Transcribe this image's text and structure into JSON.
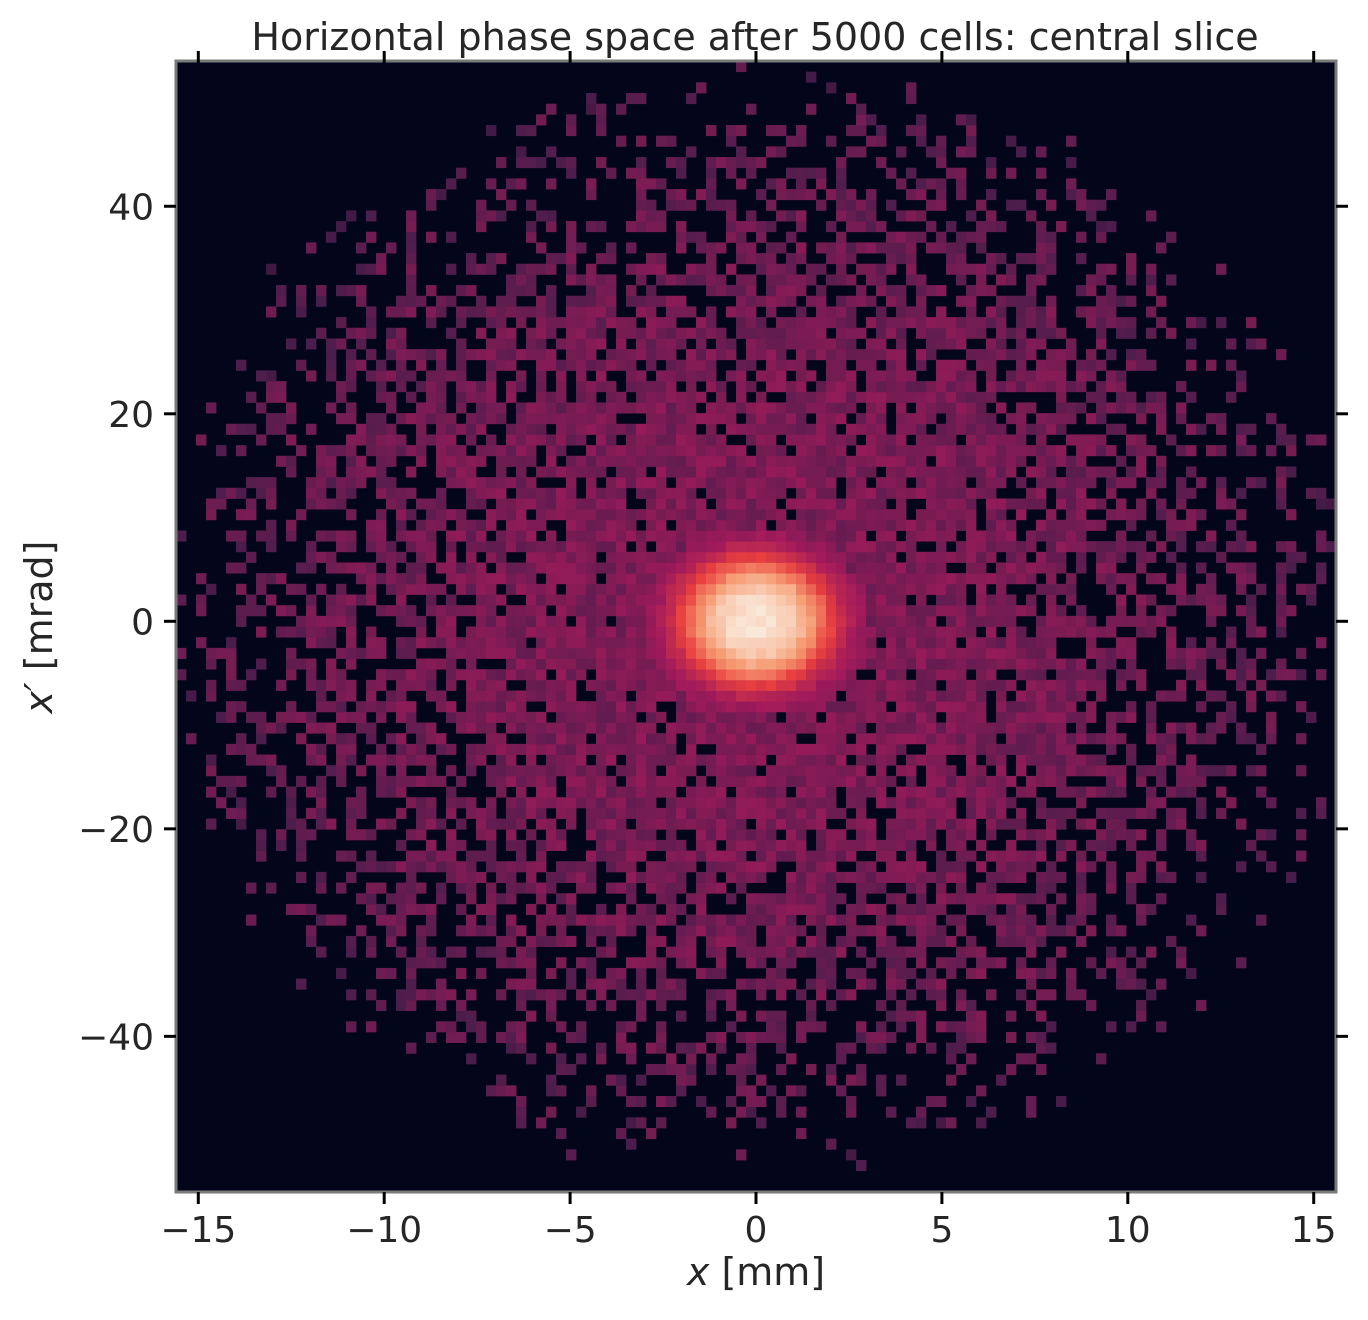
{
  "chart_data": {
    "type": "heatmap",
    "title": "Horizontal phase space after 5000 cells: central slice",
    "xlabel_var": "x",
    "xlabel_unit": "[mm]",
    "ylabel_var": "x′",
    "ylabel_unit": "[mrad]",
    "xlim": [
      -15.6,
      15.6
    ],
    "ylim": [
      -55,
      54
    ],
    "xticks": [
      -15,
      -10,
      -5,
      0,
      5,
      10,
      15
    ],
    "xtick_labels": [
      "−15",
      "−10",
      "−5",
      "0",
      "5",
      "10",
      "15"
    ],
    "yticks": [
      -40,
      -20,
      0,
      20,
      40
    ],
    "ytick_labels": [
      "−40",
      "−20",
      "0",
      "20",
      "40"
    ],
    "bins": {
      "x": 116,
      "y": 106
    },
    "core": {
      "center_x": 0,
      "center_y": 0,
      "sigma_x_mm": 1.6,
      "sigma_y_mrad": 4.8
    },
    "halo": {
      "center_x": 0,
      "center_y": 0,
      "radius_x_mm": 14.5,
      "radius_y_mrad": 47
    },
    "colormap": [
      "#03051a",
      "#4c1d4b",
      "#a11a5b",
      "#e83f3f",
      "#f69c73",
      "#faebdd"
    ],
    "background_color": "#03051a",
    "grid": false
  }
}
